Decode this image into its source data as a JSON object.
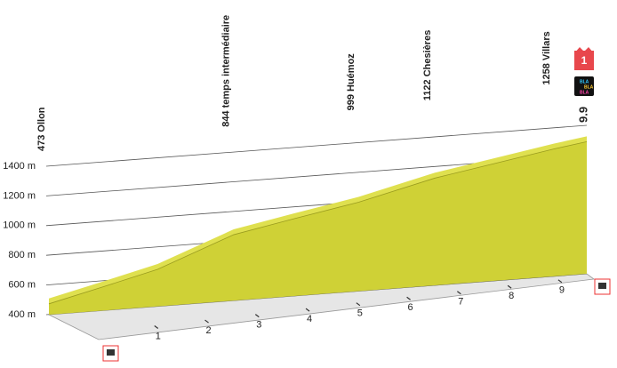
{
  "chart_data": {
    "type": "elevation-profile",
    "x": [
      0,
      1,
      2,
      3.4,
      4.5,
      5.7,
      7.1,
      8.2,
      9.3,
      9.9
    ],
    "values": [
      473,
      560,
      650,
      844,
      920,
      999,
      1122,
      1190,
      1258,
      1290
    ],
    "color": "#cfd136",
    "top_color": "#dfe04f",
    "xlim": [
      0,
      9.9
    ],
    "xticks": [
      1,
      2,
      3,
      4,
      5,
      6,
      7,
      8,
      9
    ],
    "ylim": [
      400,
      1400
    ],
    "yticks": [
      {
        "value": 400,
        "label": "400 m"
      },
      {
        "value": 600,
        "label": "600 m"
      },
      {
        "value": 800,
        "label": "800 m"
      },
      {
        "value": 1000,
        "label": "1000 m"
      },
      {
        "value": 1200,
        "label": "1200 m"
      },
      {
        "value": 1400,
        "label": "1400 m"
      }
    ],
    "grid": true,
    "waypoints": [
      {
        "label": "473 Ollon",
        "km": 0,
        "altitude": 473
      },
      {
        "label": "844 temps intermédiaire",
        "km": 3.4,
        "altitude": 844
      },
      {
        "label": "999 Huémoz",
        "km": 5.7,
        "altitude": 999
      },
      {
        "label": "1122 Chesières",
        "km": 7.1,
        "altitude": 1122
      },
      {
        "label": "1258 Villars",
        "km": 9.3,
        "altitude": 1258
      }
    ],
    "climb_category": "1",
    "logo_text": [
      "BLA",
      "BLA",
      "BLA"
    ]
  }
}
